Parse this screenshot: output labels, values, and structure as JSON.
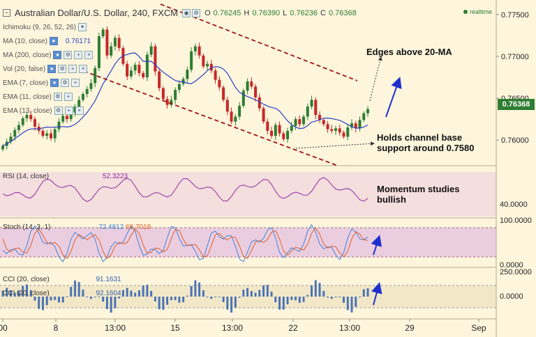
{
  "header": {
    "title": "Australian Dollar/U.S. Dollar, 240, FXCM",
    "ohlc": [
      {
        "k": "O",
        "v": "0.76245"
      },
      {
        "k": "H",
        "v": "0.76390"
      },
      {
        "k": "L",
        "v": "0.76236"
      },
      {
        "k": "C",
        "v": "0.76368"
      }
    ],
    "realtime": "realtime"
  },
  "indicators": [
    {
      "label": "Ichimoku (9, 26, 52, 26)"
    },
    {
      "label": "MA (10, close)",
      "value": "0.76171"
    },
    {
      "label": "MA (200, close)"
    },
    {
      "label": "Vol (20, false)"
    },
    {
      "label": "EMA (7, close)"
    },
    {
      "label": "EMA (11, close)"
    },
    {
      "label": "EMA (13, close)"
    }
  ],
  "annotations": {
    "a1": "Edges above 20-MA",
    "a2_l1": "Holds channel base",
    "a2_l2": "support around 0.7580",
    "a3_l1": "Momentum studies",
    "a3_l2": "bullish"
  },
  "panels": {
    "rsi": {
      "label": "RSI (14, close)",
      "value": "52.3223",
      "axis": [
        "40.0000"
      ]
    },
    "stoch": {
      "label": "Stoch (14, 3, 1)",
      "k": "72.4812",
      "d": "69.7018",
      "axis": [
        "100.0000",
        "0.0000"
      ]
    },
    "cci": {
      "label": "CCI (20, close)",
      "label2": "CCI (20, close)",
      "value": "91.1631",
      "value2": "92.1604",
      "axis": [
        "250.0000",
        "0.0000"
      ]
    }
  },
  "last_price": "0.76368",
  "colors": {
    "bull": "#2e7d32",
    "bear": "#c62828",
    "ma": "#2b3fc6",
    "channel": "#a01818",
    "rsi": "#8e2a9e",
    "stochK": "#3f86d8",
    "stochD": "#e0602a",
    "cci": "#2f5fb0",
    "price_tag": "#2e7d32",
    "arrow": "#1f2fd0"
  },
  "chart_data": {
    "type": "candlestick",
    "symbol": "Australian Dollar/U.S. Dollar",
    "timeframe": "240",
    "source": "FXCM",
    "x_ticks": [
      "00",
      "8",
      "13:00",
      "15",
      "13:00",
      "22",
      "13:00",
      "29",
      "Sep"
    ],
    "y_ticks": [
      "0.77500",
      "0.77000",
      "0.76500",
      "0.76000"
    ],
    "ylim": [
      0.7576,
      0.7759
    ],
    "closes": [
      0.7593,
      0.7598,
      0.7604,
      0.7612,
      0.7618,
      0.7626,
      0.763,
      0.7625,
      0.7616,
      0.7611,
      0.7605,
      0.7608,
      0.7602,
      0.7613,
      0.7622,
      0.7629,
      0.7625,
      0.7633,
      0.764,
      0.7648,
      0.7655,
      0.7661,
      0.7668,
      0.7686,
      0.7724,
      0.7732,
      0.7701,
      0.7712,
      0.7722,
      0.771,
      0.7691,
      0.7676,
      0.7683,
      0.769,
      0.768,
      0.7675,
      0.7702,
      0.7712,
      0.7682,
      0.7662,
      0.7649,
      0.7642,
      0.7648,
      0.766,
      0.7667,
      0.7673,
      0.7684,
      0.7706,
      0.7712,
      0.7701,
      0.7688,
      0.7691,
      0.7683,
      0.7672,
      0.7663,
      0.7648,
      0.7634,
      0.7622,
      0.7628,
      0.7641,
      0.7659,
      0.767,
      0.7664,
      0.7651,
      0.7638,
      0.7622,
      0.7611,
      0.7605,
      0.7618,
      0.7608,
      0.7601,
      0.7611,
      0.7617,
      0.7625,
      0.7619,
      0.7628,
      0.764,
      0.7648,
      0.763,
      0.7624,
      0.7619,
      0.7613,
      0.7611,
      0.7614,
      0.7609,
      0.7604,
      0.7615,
      0.762,
      0.7614,
      0.7624,
      0.7632,
      0.7637
    ],
    "annotations_text": [
      "Edges above 20-MA",
      "Holds channel base support around 0.7580",
      "Momentum studies bullish"
    ]
  }
}
